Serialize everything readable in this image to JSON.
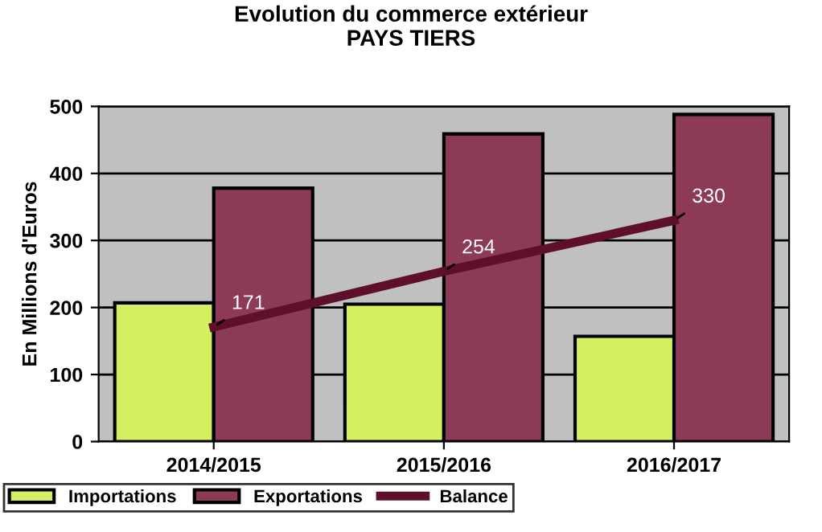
{
  "chart_data": {
    "type": "bar",
    "title": "Evolution du commerce extérieur\nPAYS TIERS",
    "ylabel": "En Millions d'Euros",
    "categories": [
      "2014/2015",
      "2015/2016",
      "2016/2017"
    ],
    "series": [
      {
        "name": "Importations",
        "color": "#d4f060",
        "values": [
          207,
          205,
          157
        ]
      },
      {
        "name": "Exportations",
        "color": "#8c3a58",
        "values": [
          378,
          459,
          488
        ]
      },
      {
        "name": "Balance",
        "type": "line",
        "color": "#5e0f2a",
        "values": [
          171,
          254,
          330
        ],
        "data_labels": true
      }
    ],
    "ylim": [
      0,
      500
    ],
    "yticks": [
      0,
      100,
      200,
      300,
      400,
      500
    ],
    "grid": "y",
    "legend": "bottom",
    "marker": "none"
  }
}
